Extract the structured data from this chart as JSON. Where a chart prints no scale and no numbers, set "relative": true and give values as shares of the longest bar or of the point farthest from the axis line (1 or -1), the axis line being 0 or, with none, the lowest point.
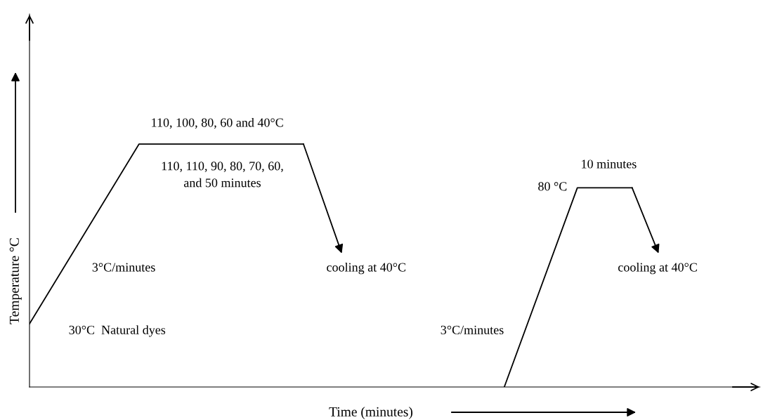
{
  "chart_data": {
    "type": "line",
    "relative": true,
    "xlabel": "Time (minutes)",
    "ylabel": "Temperature °C",
    "categories": [
      null,
      null,
      null,
      null,
      null,
      null,
      null,
      null,
      null,
      null,
      null,
      null,
      null,
      null,
      null,
      null,
      null,
      null,
      null,
      null,
      null,
      null,
      null,
      null,
      null,
      null,
      null,
      null,
      null,
      null,
      null,
      null,
      null,
      null,
      null,
      null,
      null,
      null,
      null,
      null,
      null
    ],
    "series": [
      {
        "color": "#000000",
        "values": [
          0.26,
          null,
          null,
          null,
          null,
          null,
          1,
          null,
          null,
          null,
          null,
          null,
          null,
          null,
          null,
          1,
          null,
          null,
          null,
          null,
          null,
          null,
          null,
          null,
          null,
          null,
          null,
          null,
          null,
          null,
          null,
          null,
          null,
          null,
          null,
          null,
          null,
          null,
          null,
          null,
          null
        ]
      },
      {
        "color": "#000000",
        "values": [
          null,
          null,
          null,
          null,
          null,
          null,
          null,
          null,
          null,
          null,
          null,
          null,
          null,
          null,
          null,
          null,
          null,
          null,
          null,
          null,
          null,
          null,
          null,
          null,
          null,
          null,
          0,
          null,
          null,
          null,
          0.82,
          null,
          null,
          0.82,
          null,
          null,
          null,
          null,
          null,
          null,
          null
        ]
      }
    ],
    "annotations": [
      "110, 100, 80, 60 and 40°C",
      "110, 110, 90, 80, 70, 60,\nand 50 minutes",
      "3°C/minutes",
      "30°C  Natural dyes",
      "cooling at 40°C",
      "10 minutes",
      "80 °C",
      "cooling at 40°C",
      "3°C/minutes"
    ]
  }
}
